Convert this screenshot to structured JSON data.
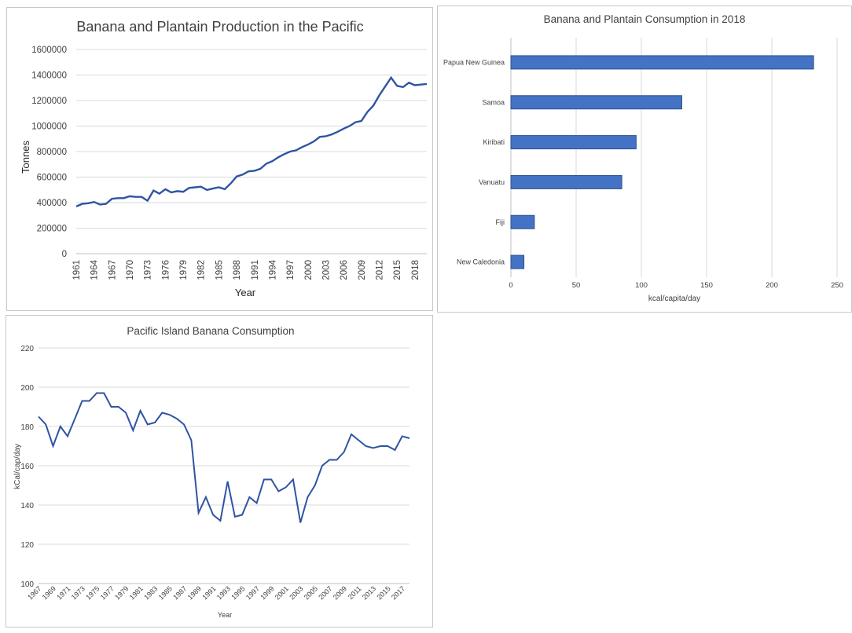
{
  "colors": {
    "line": "#2f54a3",
    "bar_fill": "#4472c4",
    "bar_stroke": "#2f528f",
    "grid": "#d9d9d9"
  },
  "chart_data": [
    {
      "type": "line",
      "title": "Banana and Plantain Production in the Pacific",
      "xlabel": "Year",
      "ylabel": "Tonnes",
      "ylim": [
        0,
        1600000
      ],
      "yticks": [
        "0",
        "200000",
        "400000",
        "600000",
        "800000",
        "1000000",
        "1200000",
        "1400000",
        "1600000"
      ],
      "xticks": [
        "1961",
        "1964",
        "1967",
        "1970",
        "1973",
        "1976",
        "1979",
        "1982",
        "1985",
        "1988",
        "1991",
        "1994",
        "1997",
        "2000",
        "2003",
        "2006",
        "2009",
        "2012",
        "2015",
        "2018"
      ],
      "x": [
        1961,
        1962,
        1963,
        1964,
        1965,
        1966,
        1967,
        1968,
        1969,
        1970,
        1971,
        1972,
        1973,
        1974,
        1975,
        1976,
        1977,
        1978,
        1979,
        1980,
        1981,
        1982,
        1983,
        1984,
        1985,
        1986,
        1987,
        1988,
        1989,
        1990,
        1991,
        1992,
        1993,
        1994,
        1995,
        1996,
        1997,
        1998,
        1999,
        2000,
        2001,
        2002,
        2003,
        2004,
        2005,
        2006,
        2007,
        2008,
        2009,
        2010,
        2011,
        2012,
        2013,
        2014,
        2015,
        2016,
        2017,
        2018,
        2019,
        2020
      ],
      "series": [
        {
          "values": [
            370000,
            390000,
            395000,
            405000,
            385000,
            390000,
            430000,
            435000,
            435000,
            450000,
            445000,
            445000,
            415000,
            495000,
            470000,
            505000,
            480000,
            490000,
            485000,
            515000,
            520000,
            525000,
            500000,
            510000,
            520000,
            505000,
            550000,
            605000,
            620000,
            645000,
            650000,
            665000,
            705000,
            725000,
            755000,
            780000,
            800000,
            810000,
            835000,
            855000,
            880000,
            915000,
            920000,
            935000,
            955000,
            980000,
            1000000,
            1030000,
            1040000,
            1110000,
            1160000,
            1240000,
            1310000,
            1380000,
            1315000,
            1305000,
            1340000,
            1320000,
            1325000,
            1330000
          ]
        }
      ]
    },
    {
      "type": "bar",
      "orientation": "horizontal",
      "title": "Banana and Plantain Consumption in 2018",
      "xlabel": "kcal/capita/day",
      "xlim": [
        0,
        250
      ],
      "xticks": [
        "0",
        "50",
        "100",
        "150",
        "200",
        "250"
      ],
      "categories": [
        "Papua New Guinea",
        "Samoa",
        "Kiribati",
        "Vanuatu",
        "Fiji",
        "New Caledonia"
      ],
      "values": [
        232,
        131,
        96,
        85,
        18,
        10
      ]
    },
    {
      "type": "line",
      "title": "Pacific Island Banana Consumption",
      "xlabel": "Year",
      "ylabel": "kCal/cap/day",
      "ylim": [
        100,
        220
      ],
      "yticks": [
        "100",
        "120",
        "140",
        "160",
        "180",
        "200",
        "220"
      ],
      "xticks": [
        "1967",
        "1969",
        "1971",
        "1973",
        "1975",
        "1977",
        "1979",
        "1981",
        "1983",
        "1985",
        "1987",
        "1989",
        "1991",
        "1993",
        "1995",
        "1997",
        "1999",
        "2001",
        "2003",
        "2005",
        "2007",
        "2009",
        "2011",
        "2013",
        "2015",
        "2017"
      ],
      "x": [
        1967,
        1968,
        1969,
        1970,
        1971,
        1972,
        1973,
        1974,
        1975,
        1976,
        1977,
        1978,
        1979,
        1980,
        1981,
        1982,
        1983,
        1984,
        1985,
        1986,
        1987,
        1988,
        1989,
        1990,
        1991,
        1992,
        1993,
        1994,
        1995,
        1996,
        1997,
        1998,
        1999,
        2000,
        2001,
        2002,
        2003,
        2004,
        2005,
        2006,
        2007,
        2008,
        2009,
        2010,
        2011,
        2012,
        2013,
        2014,
        2015,
        2016,
        2017,
        2018
      ],
      "series": [
        {
          "values": [
            185,
            181,
            170,
            180,
            175,
            184,
            193,
            193,
            197,
            197,
            190,
            190,
            187,
            178,
            188,
            181,
            182,
            187,
            186,
            184,
            181,
            173,
            136,
            144,
            135,
            132,
            152,
            134,
            135,
            144,
            141,
            153,
            153,
            147,
            149,
            153,
            131,
            144,
            150,
            160,
            163,
            163,
            167,
            176,
            173,
            170,
            169,
            170,
            170,
            168,
            175,
            174
          ]
        }
      ]
    }
  ]
}
